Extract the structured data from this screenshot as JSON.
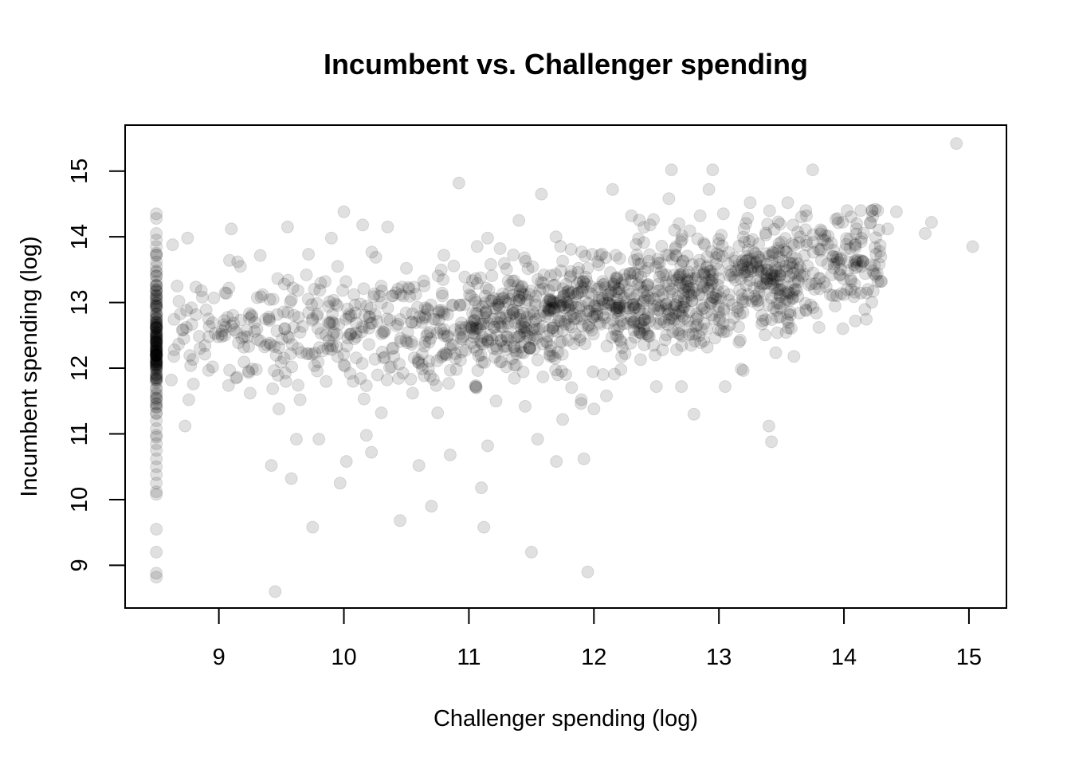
{
  "chart_data": {
    "type": "scatter",
    "title": "Incumbent vs. Challenger spending",
    "xlabel": "Challenger spending (log)",
    "ylabel": "Incumbent spending (log)",
    "xlim": [
      8.25,
      15.3
    ],
    "ylim": [
      8.35,
      15.7
    ],
    "xticks": [
      9,
      10,
      11,
      12,
      13,
      14,
      15
    ],
    "yticks": [
      9,
      10,
      11,
      12,
      13,
      14,
      15
    ],
    "grid": false,
    "legend": "none",
    "point_color": "#000000",
    "point_opacity": 0.12,
    "points": [
      [
        8.5,
        14.35
      ],
      [
        8.5,
        14.28
      ],
      [
        8.5,
        14.05
      ],
      [
        8.5,
        13.95
      ],
      [
        8.5,
        13.85
      ],
      [
        8.5,
        13.75
      ],
      [
        8.5,
        13.62
      ],
      [
        8.5,
        13.55
      ],
      [
        8.5,
        13.48
      ],
      [
        8.5,
        13.4
      ],
      [
        8.5,
        13.32
      ],
      [
        8.5,
        13.25
      ],
      [
        8.5,
        13.18
      ],
      [
        8.5,
        13.1
      ],
      [
        8.5,
        13.03
      ],
      [
        8.5,
        12.96
      ],
      [
        8.5,
        12.9
      ],
      [
        8.5,
        12.83
      ],
      [
        8.5,
        12.76
      ],
      [
        8.5,
        12.7
      ],
      [
        8.5,
        12.62
      ],
      [
        8.5,
        12.55
      ],
      [
        8.5,
        12.48
      ],
      [
        8.5,
        12.41
      ],
      [
        8.5,
        12.34
      ],
      [
        8.5,
        12.27
      ],
      [
        8.5,
        12.2
      ],
      [
        8.5,
        12.13
      ],
      [
        8.5,
        12.06
      ],
      [
        8.5,
        11.99
      ],
      [
        8.5,
        11.92
      ],
      [
        8.5,
        11.85
      ],
      [
        8.5,
        11.78
      ],
      [
        8.5,
        11.7
      ],
      [
        8.5,
        11.62
      ],
      [
        8.5,
        11.55
      ],
      [
        8.5,
        11.45
      ],
      [
        8.5,
        11.32
      ],
      [
        8.5,
        11.2
      ],
      [
        8.5,
        11.08
      ],
      [
        8.5,
        10.95
      ],
      [
        8.5,
        10.85
      ],
      [
        8.5,
        10.75
      ],
      [
        8.5,
        10.62
      ],
      [
        8.5,
        10.5
      ],
      [
        8.5,
        10.38
      ],
      [
        8.5,
        10.25
      ],
      [
        8.5,
        10.12
      ],
      [
        8.5,
        10.08
      ],
      [
        8.5,
        9.55
      ],
      [
        8.5,
        9.2
      ],
      [
        8.5,
        8.88
      ],
      [
        8.5,
        8.82
      ],
      [
        8.68,
        13.02
      ],
      [
        8.75,
        13.98
      ],
      [
        8.63,
        13.88
      ],
      [
        8.78,
        12.92
      ],
      [
        8.74,
        12.62
      ],
      [
        8.86,
        13.18
      ],
      [
        8.92,
        12.48
      ],
      [
        8.64,
        12.18
      ],
      [
        8.73,
        11.12
      ],
      [
        8.76,
        11.52
      ],
      [
        8.62,
        11.82
      ],
      [
        8.95,
        12.02
      ],
      [
        9.02,
        12.52
      ],
      [
        9.08,
        13.22
      ],
      [
        9.1,
        14.12
      ],
      [
        9.15,
        13.62
      ],
      [
        9.2,
        12.32
      ],
      [
        9.25,
        11.62
      ],
      [
        9.3,
        11.98
      ],
      [
        9.35,
        13.12
      ],
      [
        9.4,
        12.78
      ],
      [
        9.42,
        10.52
      ],
      [
        9.45,
        8.6
      ],
      [
        9.48,
        11.38
      ],
      [
        9.55,
        14.15
      ],
      [
        9.58,
        10.32
      ],
      [
        9.6,
        12.62
      ],
      [
        9.62,
        10.92
      ],
      [
        9.65,
        11.52
      ],
      [
        9.7,
        13.42
      ],
      [
        9.72,
        12.22
      ],
      [
        9.75,
        9.58
      ],
      [
        9.8,
        10.92
      ],
      [
        9.85,
        13.32
      ],
      [
        9.88,
        12.42
      ],
      [
        9.9,
        13.98
      ],
      [
        9.92,
        12.68
      ],
      [
        9.95,
        13.55
      ],
      [
        9.97,
        10.25
      ],
      [
        10.0,
        14.38
      ],
      [
        10.02,
        10.58
      ],
      [
        10.05,
        11.92
      ],
      [
        10.08,
        13.12
      ],
      [
        10.1,
        12.48
      ],
      [
        10.15,
        14.18
      ],
      [
        10.18,
        10.98
      ],
      [
        10.22,
        10.72
      ],
      [
        10.25,
        12.82
      ],
      [
        10.3,
        11.32
      ],
      [
        10.35,
        14.15
      ],
      [
        10.4,
        12.18
      ],
      [
        10.45,
        9.68
      ],
      [
        10.5,
        13.52
      ],
      [
        10.55,
        11.62
      ],
      [
        10.6,
        10.52
      ],
      [
        10.65,
        12.92
      ],
      [
        10.7,
        9.9
      ],
      [
        10.75,
        11.32
      ],
      [
        10.8,
        13.72
      ],
      [
        10.85,
        10.68
      ],
      [
        10.9,
        11.98
      ],
      [
        10.92,
        14.82
      ],
      [
        10.95,
        12.48
      ],
      [
        11.0,
        13.22
      ],
      [
        11.05,
        11.72
      ],
      [
        11.1,
        10.18
      ],
      [
        11.12,
        9.58
      ],
      [
        11.15,
        10.82
      ],
      [
        11.2,
        12.62
      ],
      [
        11.25,
        13.82
      ],
      [
        11.3,
        12.02
      ],
      [
        11.4,
        14.25
      ],
      [
        11.45,
        11.42
      ],
      [
        11.5,
        9.2
      ],
      [
        11.52,
        12.82
      ],
      [
        11.55,
        10.92
      ],
      [
        11.58,
        14.65
      ],
      [
        11.6,
        13.42
      ],
      [
        11.65,
        12.18
      ],
      [
        11.7,
        10.58
      ],
      [
        11.75,
        11.22
      ],
      [
        11.8,
        13.12
      ],
      [
        11.85,
        12.52
      ],
      [
        11.9,
        11.52
      ],
      [
        11.92,
        10.62
      ],
      [
        11.95,
        8.9
      ],
      [
        12.0,
        11.38
      ],
      [
        12.05,
        13.72
      ],
      [
        12.1,
        11.58
      ],
      [
        12.15,
        14.72
      ],
      [
        12.2,
        12.92
      ],
      [
        12.25,
        12.22
      ],
      [
        12.3,
        14.32
      ],
      [
        12.35,
        13.42
      ],
      [
        12.4,
        12.62
      ],
      [
        12.45,
        14.18
      ],
      [
        12.5,
        11.72
      ],
      [
        12.55,
        13.12
      ],
      [
        12.6,
        14.58
      ],
      [
        12.62,
        15.02
      ],
      [
        12.65,
        13.82
      ],
      [
        12.7,
        11.72
      ],
      [
        12.75,
        13.32
      ],
      [
        12.8,
        11.3
      ],
      [
        12.85,
        14.32
      ],
      [
        12.88,
        12.68
      ],
      [
        12.92,
        14.72
      ],
      [
        12.95,
        15.02
      ],
      [
        13.0,
        13.72
      ],
      [
        13.05,
        11.72
      ],
      [
        13.1,
        13.42
      ],
      [
        13.15,
        12.92
      ],
      [
        13.2,
        14.12
      ],
      [
        13.25,
        14.52
      ],
      [
        13.3,
        13.62
      ],
      [
        13.35,
        12.72
      ],
      [
        13.4,
        11.12
      ],
      [
        13.42,
        10.88
      ],
      [
        13.45,
        13.22
      ],
      [
        13.5,
        13.92
      ],
      [
        13.55,
        14.52
      ],
      [
        13.6,
        12.18
      ],
      [
        13.65,
        13.42
      ],
      [
        13.7,
        14.32
      ],
      [
        13.75,
        15.02
      ],
      [
        13.8,
        12.62
      ],
      [
        13.85,
        14.02
      ],
      [
        13.9,
        13.42
      ],
      [
        13.95,
        14.28
      ],
      [
        14.0,
        13.12
      ],
      [
        14.05,
        13.82
      ],
      [
        14.1,
        14.12
      ],
      [
        14.15,
        13.62
      ],
      [
        14.25,
        14.42
      ],
      [
        14.3,
        13.32
      ],
      [
        14.35,
        14.12
      ],
      [
        14.42,
        14.38
      ],
      [
        14.65,
        14.05
      ],
      [
        14.7,
        14.22
      ],
      [
        14.9,
        15.42
      ],
      [
        15.03,
        13.85
      ]
    ],
    "cloud": {
      "count": 1400,
      "seed": 7,
      "x_range": [
        8.62,
        14.3
      ],
      "trend": [
        [
          8.6,
          12.55
        ],
        [
          10.0,
          12.62
        ],
        [
          11.0,
          12.62
        ],
        [
          12.0,
          12.95
        ],
        [
          13.0,
          13.25
        ],
        [
          14.0,
          13.6
        ]
      ],
      "spread_sd": 0.42
    }
  }
}
